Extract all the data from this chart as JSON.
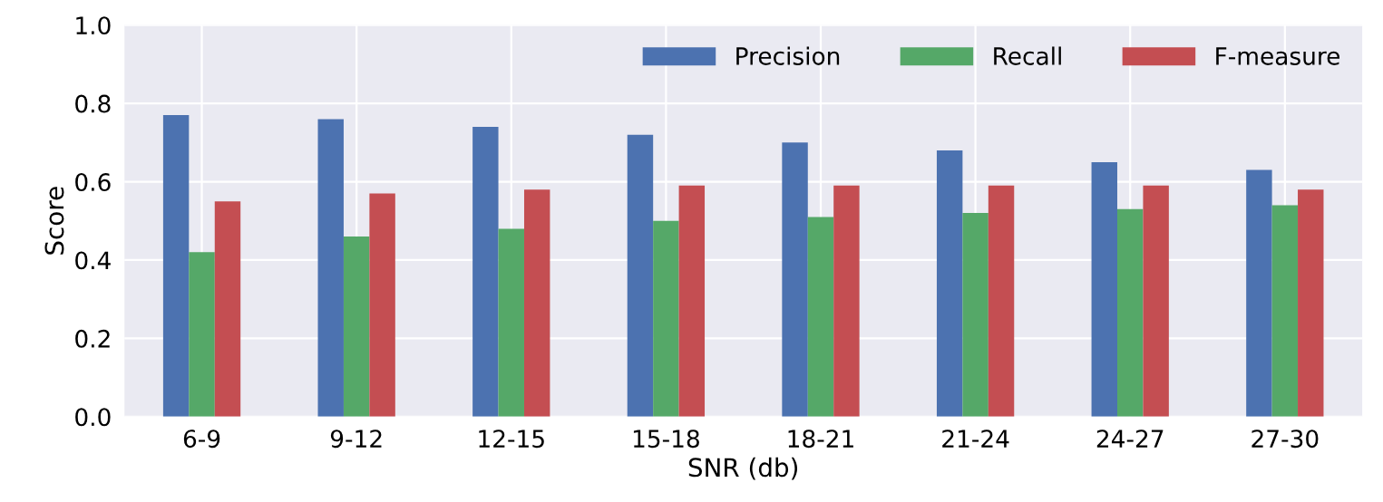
{
  "chart_data": {
    "type": "bar",
    "xlabel": "SNR (db)",
    "ylabel": "Score",
    "categories": [
      "6-9",
      "9-12",
      "12-15",
      "15-18",
      "18-21",
      "21-24",
      "24-27",
      "27-30"
    ],
    "series": [
      {
        "name": "Precision",
        "color": "#4c72b0",
        "values": [
          0.77,
          0.76,
          0.74,
          0.72,
          0.7,
          0.68,
          0.65,
          0.63
        ]
      },
      {
        "name": "Recall",
        "color": "#55a868",
        "values": [
          0.42,
          0.46,
          0.48,
          0.5,
          0.51,
          0.52,
          0.53,
          0.54
        ]
      },
      {
        "name": "F-measure",
        "color": "#c44e52",
        "values": [
          0.55,
          0.57,
          0.58,
          0.59,
          0.59,
          0.59,
          0.59,
          0.58
        ]
      }
    ],
    "ylim": [
      0,
      1.0
    ],
    "yticks": [
      {
        "value": 0,
        "label": "0.0"
      },
      0.2,
      0.4,
      0.6,
      0.8,
      {
        "value": 1,
        "label": "1.0"
      }
    ],
    "grid": true,
    "legend": "top right"
  }
}
